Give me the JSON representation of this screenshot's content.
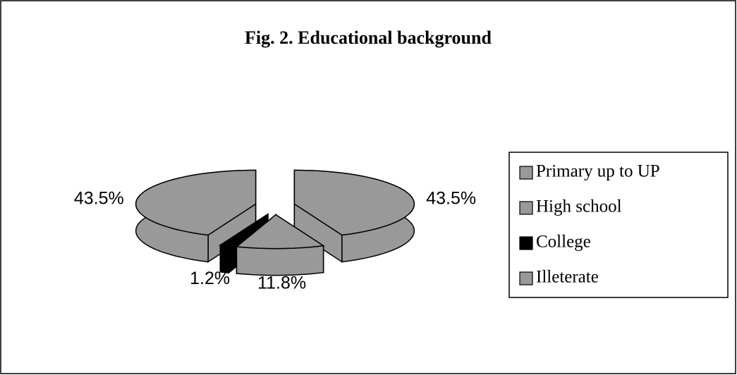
{
  "chart_data": {
    "type": "pie3d",
    "title": "Fig. 2. Educational background",
    "categories": [
      "Primary up to UP",
      "High school",
      "College",
      "Illeterate"
    ],
    "values": [
      43.5,
      11.8,
      1.2,
      43.5
    ],
    "value_labels": [
      "43.5%",
      "11.8%",
      "1.2%",
      "43.5%"
    ],
    "colors": [
      "#999999",
      "#999999",
      "#000000",
      "#999999"
    ],
    "legend": "right"
  }
}
